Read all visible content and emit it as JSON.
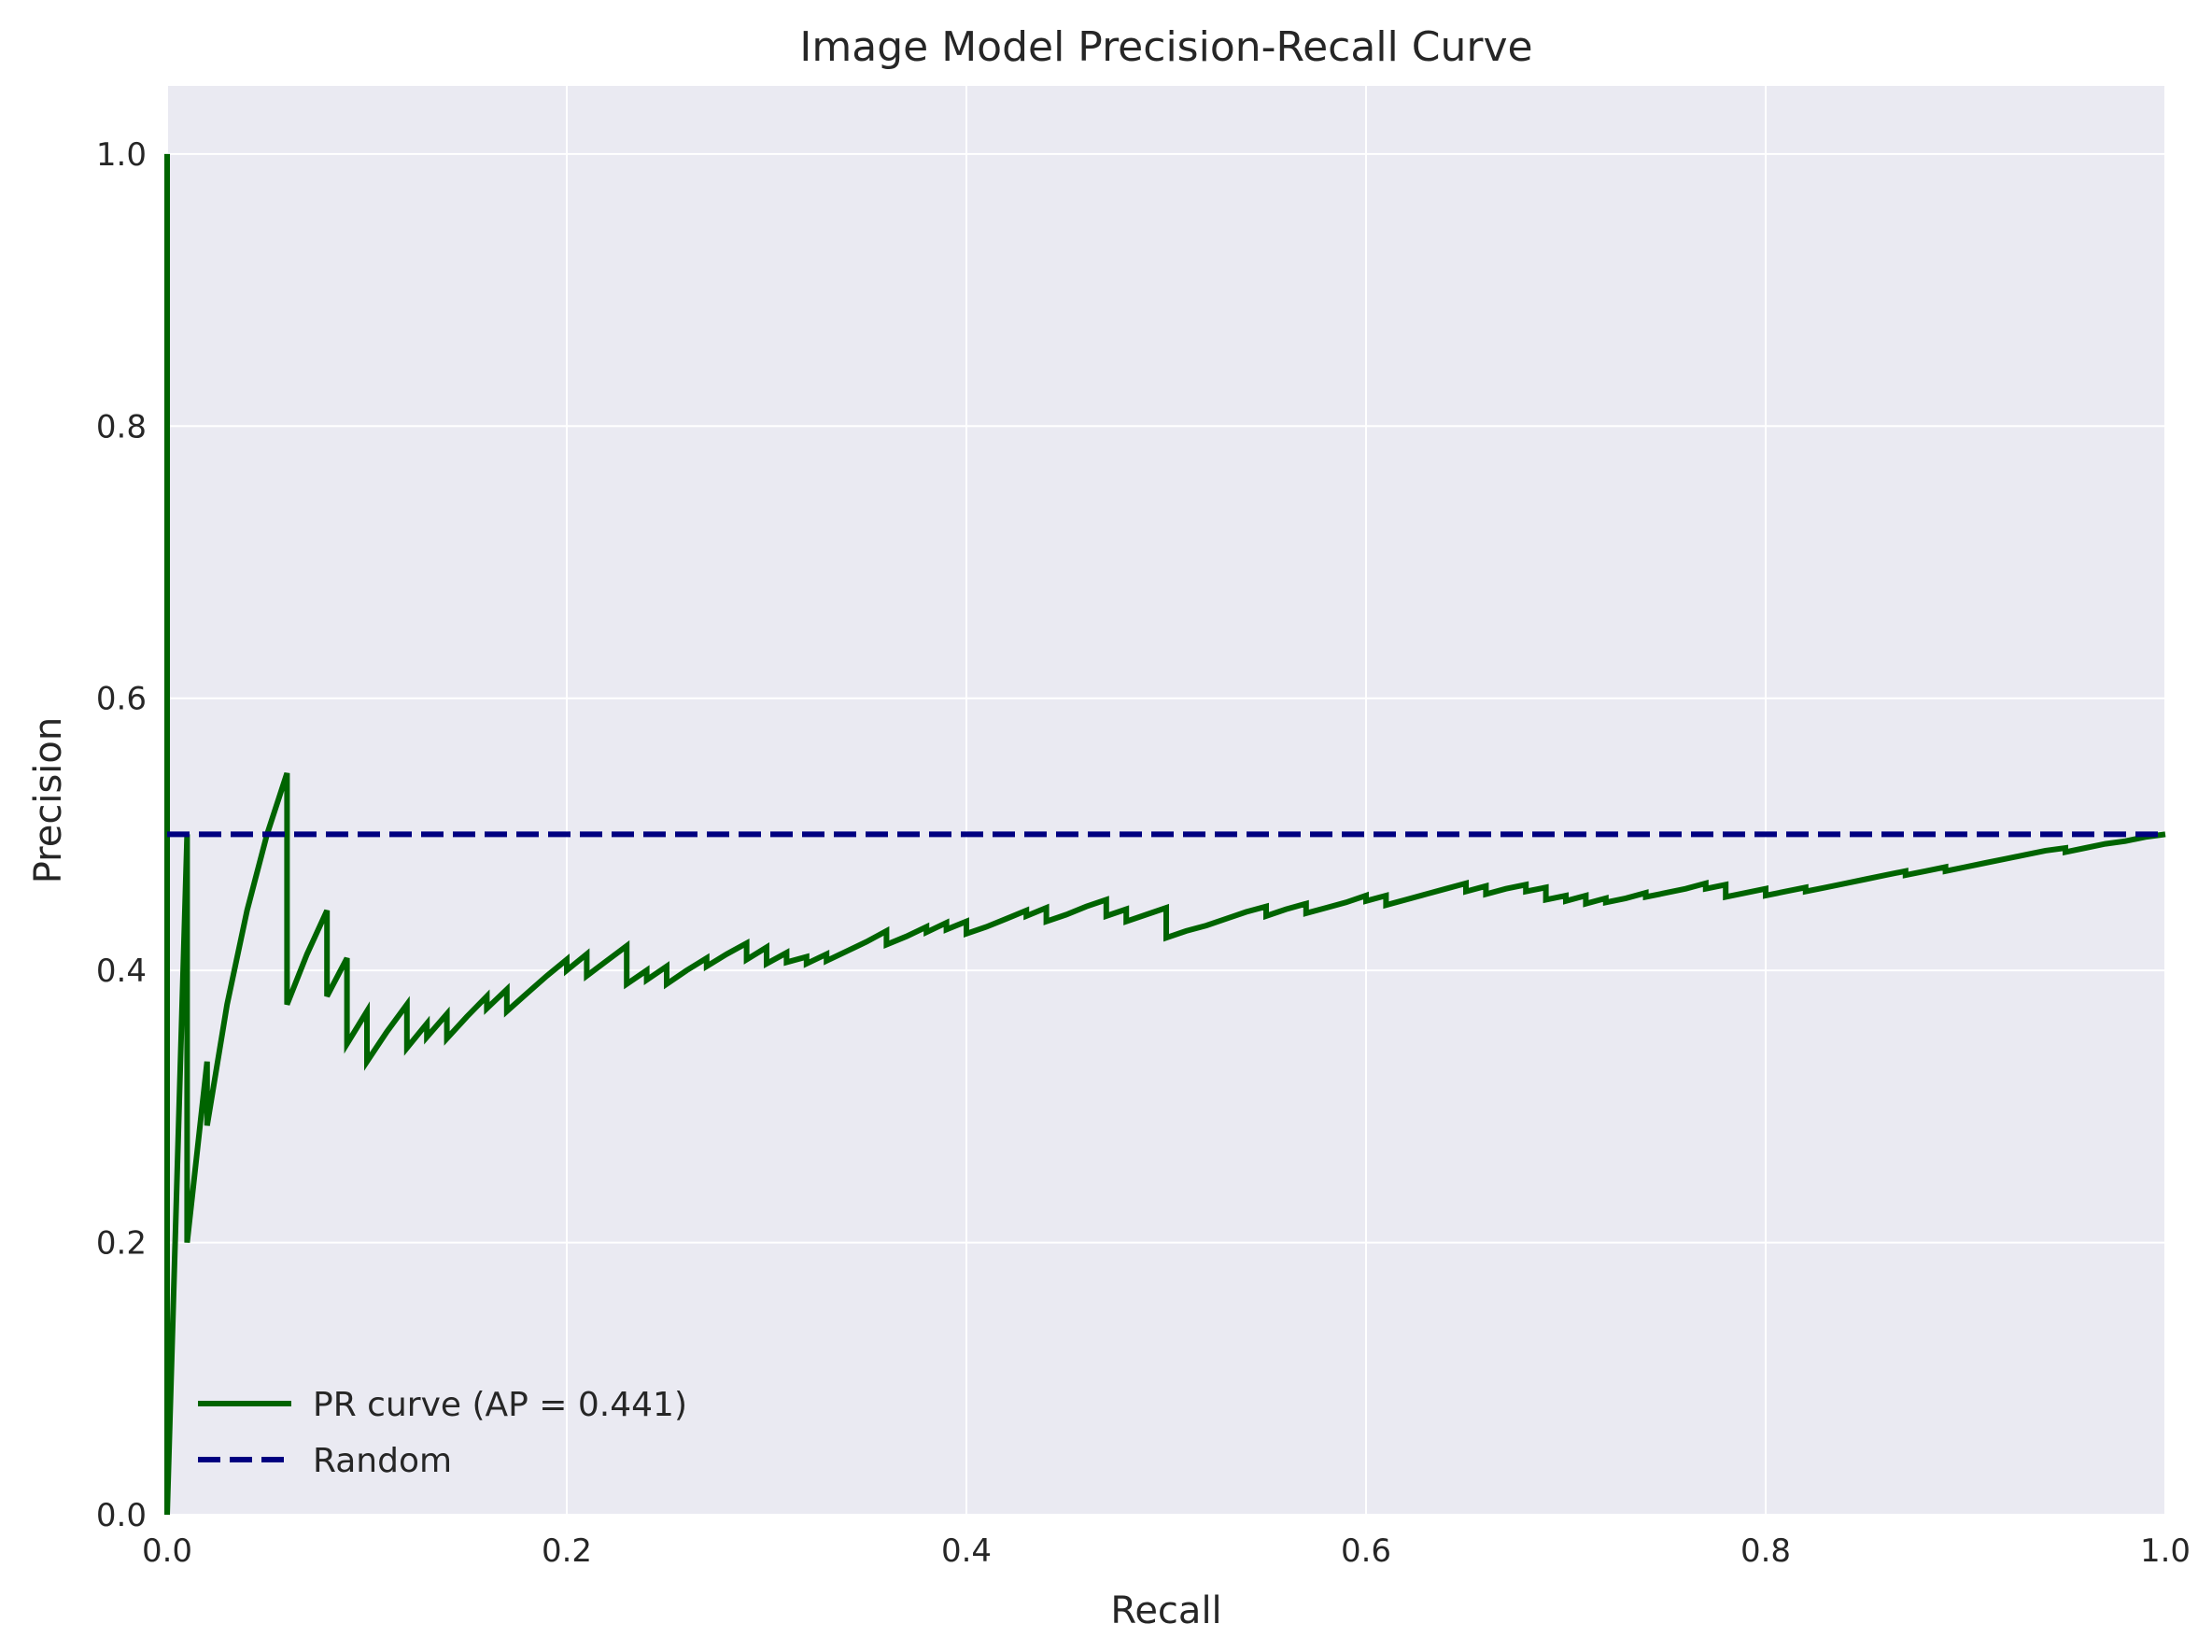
{
  "colors": {
    "plot_background": "#eaeaf2",
    "grid": "#ffffff",
    "pr_curve": "#006400",
    "random": "#000080",
    "text": "#262626"
  },
  "chart_data": {
    "type": "line",
    "title": "Image Model Precision-Recall Curve",
    "xlabel": "Recall",
    "ylabel": "Precision",
    "xlim": [
      0.0,
      1.0
    ],
    "ylim": [
      0.0,
      1.05
    ],
    "xticks": [
      0.0,
      0.2,
      0.4,
      0.6,
      0.8,
      1.0
    ],
    "xtick_labels": [
      "0.0",
      "0.2",
      "0.4",
      "0.6",
      "0.8",
      "1.0"
    ],
    "yticks": [
      0.0,
      0.2,
      0.4,
      0.6,
      0.8,
      1.0
    ],
    "ytick_labels": [
      "0.0",
      "0.2",
      "0.4",
      "0.6",
      "0.8",
      "1.0"
    ],
    "grid": true,
    "legend_position": "lower-left",
    "series": [
      {
        "name": "PR curve (AP = 0.441)",
        "style": "solid",
        "points": [
          [
            0.0,
            1.0
          ],
          [
            0.0,
            0.0
          ],
          [
            0.01,
            0.5
          ],
          [
            0.01,
            0.2
          ],
          [
            0.02,
            0.333
          ],
          [
            0.02,
            0.286
          ],
          [
            0.03,
            0.375
          ],
          [
            0.04,
            0.444
          ],
          [
            0.05,
            0.5
          ],
          [
            0.06,
            0.545
          ],
          [
            0.06,
            0.375
          ],
          [
            0.07,
            0.412
          ],
          [
            0.08,
            0.444
          ],
          [
            0.08,
            0.381
          ],
          [
            0.09,
            0.409
          ],
          [
            0.09,
            0.346
          ],
          [
            0.1,
            0.37
          ],
          [
            0.1,
            0.333
          ],
          [
            0.11,
            0.355
          ],
          [
            0.12,
            0.375
          ],
          [
            0.12,
            0.343
          ],
          [
            0.13,
            0.361
          ],
          [
            0.13,
            0.351
          ],
          [
            0.14,
            0.368
          ],
          [
            0.14,
            0.35
          ],
          [
            0.15,
            0.366
          ],
          [
            0.16,
            0.381
          ],
          [
            0.16,
            0.372
          ],
          [
            0.17,
            0.386
          ],
          [
            0.17,
            0.37
          ],
          [
            0.18,
            0.383
          ],
          [
            0.19,
            0.396
          ],
          [
            0.2,
            0.408
          ],
          [
            0.2,
            0.4
          ],
          [
            0.21,
            0.412
          ],
          [
            0.21,
            0.396
          ],
          [
            0.22,
            0.407
          ],
          [
            0.23,
            0.418
          ],
          [
            0.23,
            0.39
          ],
          [
            0.24,
            0.4
          ],
          [
            0.24,
            0.393
          ],
          [
            0.25,
            0.403
          ],
          [
            0.25,
            0.39
          ],
          [
            0.26,
            0.4
          ],
          [
            0.27,
            0.409
          ],
          [
            0.27,
            0.403
          ],
          [
            0.28,
            0.412
          ],
          [
            0.29,
            0.42
          ],
          [
            0.29,
            0.408
          ],
          [
            0.3,
            0.417
          ],
          [
            0.3,
            0.405
          ],
          [
            0.31,
            0.413
          ],
          [
            0.31,
            0.406
          ],
          [
            0.32,
            0.41
          ],
          [
            0.32,
            0.405
          ],
          [
            0.33,
            0.412
          ],
          [
            0.33,
            0.407
          ],
          [
            0.34,
            0.414
          ],
          [
            0.35,
            0.421
          ],
          [
            0.36,
            0.429
          ],
          [
            0.36,
            0.419
          ],
          [
            0.37,
            0.425
          ],
          [
            0.38,
            0.432
          ],
          [
            0.38,
            0.428
          ],
          [
            0.39,
            0.435
          ],
          [
            0.39,
            0.43
          ],
          [
            0.4,
            0.436
          ],
          [
            0.4,
            0.427
          ],
          [
            0.41,
            0.432
          ],
          [
            0.42,
            0.438
          ],
          [
            0.43,
            0.444
          ],
          [
            0.43,
            0.44
          ],
          [
            0.44,
            0.446
          ],
          [
            0.44,
            0.436
          ],
          [
            0.45,
            0.441
          ],
          [
            0.46,
            0.447
          ],
          [
            0.47,
            0.452
          ],
          [
            0.47,
            0.44
          ],
          [
            0.48,
            0.445
          ],
          [
            0.48,
            0.436
          ],
          [
            0.49,
            0.441
          ],
          [
            0.5,
            0.446
          ],
          [
            0.5,
            0.424
          ],
          [
            0.51,
            0.429
          ],
          [
            0.52,
            0.433
          ],
          [
            0.53,
            0.438
          ],
          [
            0.54,
            0.443
          ],
          [
            0.55,
            0.447
          ],
          [
            0.55,
            0.44
          ],
          [
            0.56,
            0.445
          ],
          [
            0.57,
            0.449
          ],
          [
            0.57,
            0.442
          ],
          [
            0.58,
            0.446
          ],
          [
            0.59,
            0.45
          ],
          [
            0.6,
            0.455
          ],
          [
            0.6,
            0.451
          ],
          [
            0.61,
            0.455
          ],
          [
            0.61,
            0.448
          ],
          [
            0.62,
            0.452
          ],
          [
            0.63,
            0.456
          ],
          [
            0.64,
            0.46
          ],
          [
            0.65,
            0.464
          ],
          [
            0.65,
            0.458
          ],
          [
            0.66,
            0.462
          ],
          [
            0.66,
            0.456
          ],
          [
            0.67,
            0.46
          ],
          [
            0.68,
            0.463
          ],
          [
            0.68,
            0.458
          ],
          [
            0.69,
            0.461
          ],
          [
            0.69,
            0.452
          ],
          [
            0.7,
            0.455
          ],
          [
            0.7,
            0.451
          ],
          [
            0.71,
            0.455
          ],
          [
            0.71,
            0.449
          ],
          [
            0.72,
            0.453
          ],
          [
            0.72,
            0.45
          ],
          [
            0.73,
            0.453
          ],
          [
            0.74,
            0.457
          ],
          [
            0.74,
            0.454
          ],
          [
            0.75,
            0.457
          ],
          [
            0.76,
            0.46
          ],
          [
            0.77,
            0.464
          ],
          [
            0.77,
            0.46
          ],
          [
            0.78,
            0.463
          ],
          [
            0.78,
            0.454
          ],
          [
            0.79,
            0.457
          ],
          [
            0.8,
            0.46
          ],
          [
            0.8,
            0.455
          ],
          [
            0.81,
            0.458
          ],
          [
            0.82,
            0.461
          ],
          [
            0.82,
            0.458
          ],
          [
            0.83,
            0.461
          ],
          [
            0.84,
            0.464
          ],
          [
            0.85,
            0.467
          ],
          [
            0.86,
            0.47
          ],
          [
            0.87,
            0.473
          ],
          [
            0.87,
            0.47
          ],
          [
            0.88,
            0.473
          ],
          [
            0.89,
            0.476
          ],
          [
            0.89,
            0.473
          ],
          [
            0.9,
            0.476
          ],
          [
            0.91,
            0.479
          ],
          [
            0.92,
            0.482
          ],
          [
            0.93,
            0.485
          ],
          [
            0.94,
            0.488
          ],
          [
            0.95,
            0.49
          ],
          [
            0.95,
            0.487
          ],
          [
            0.96,
            0.49
          ],
          [
            0.97,
            0.493
          ],
          [
            0.98,
            0.495
          ],
          [
            0.99,
            0.498
          ],
          [
            1.0,
            0.5
          ]
        ]
      },
      {
        "name": "Random",
        "style": "dashed",
        "points": [
          [
            0.0,
            0.5
          ],
          [
            1.0,
            0.5
          ]
        ]
      }
    ]
  }
}
